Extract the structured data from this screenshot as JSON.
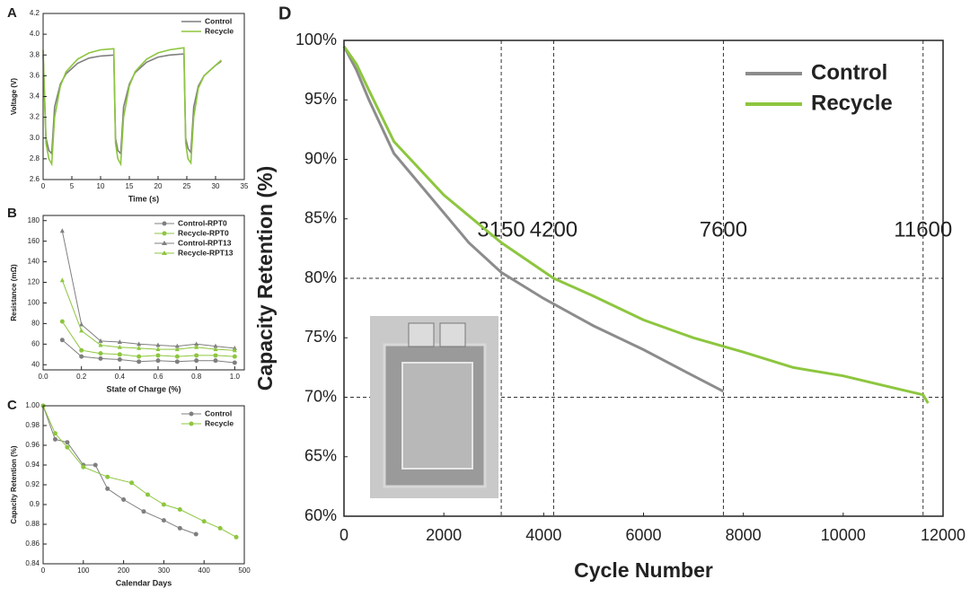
{
  "chart_data": [
    {
      "type": "line",
      "panel": "A",
      "x_label": "Time (s)",
      "y_label": "Voltage (V)",
      "xlim": [
        0,
        35
      ],
      "xticks": [
        0,
        5,
        10,
        15,
        20,
        25,
        30,
        35
      ],
      "ylim": [
        2.6,
        4.2
      ],
      "yticks": [
        2.6,
        2.8,
        {
          "value": 3,
          "label": "3.0"
        },
        3.2,
        3.4,
        3.6,
        3.8,
        {
          "value": 4,
          "label": "4.0"
        },
        4.2
      ],
      "legend": "upper right",
      "series": [
        {
          "name": "Control",
          "color": "#7f7f7f",
          "x": [
            0,
            0.5,
            1,
            1.5,
            2,
            3,
            4,
            6,
            8,
            10,
            12.3,
            12.6,
            13,
            13.5,
            14,
            15,
            16,
            18,
            20,
            22,
            24.5,
            24.8,
            25.2,
            25.7,
            26.2,
            27,
            28,
            30,
            31
          ],
          "values": [
            3.8,
            3.0,
            2.88,
            2.85,
            3.3,
            3.52,
            3.62,
            3.72,
            3.77,
            3.79,
            3.8,
            3.0,
            2.88,
            2.85,
            3.3,
            3.52,
            3.63,
            3.73,
            3.78,
            3.8,
            3.81,
            3.0,
            2.9,
            2.86,
            3.3,
            3.5,
            3.6,
            3.7,
            3.74
          ]
        },
        {
          "name": "Recycle",
          "color": "#8dc63f",
          "x": [
            0,
            0.5,
            1,
            1.5,
            2,
            3,
            4,
            6,
            8,
            10,
            12.3,
            12.6,
            13,
            13.5,
            14,
            15,
            16,
            18,
            20,
            22,
            24.5,
            24.8,
            25.2,
            25.7,
            26.2,
            27,
            28,
            30,
            31
          ],
          "values": [
            3.85,
            2.95,
            2.8,
            2.75,
            3.2,
            3.5,
            3.64,
            3.76,
            3.82,
            3.85,
            3.86,
            2.95,
            2.8,
            2.75,
            3.2,
            3.5,
            3.64,
            3.76,
            3.82,
            3.85,
            3.87,
            2.95,
            2.8,
            2.76,
            3.2,
            3.48,
            3.6,
            3.7,
            3.75
          ]
        }
      ]
    },
    {
      "type": "line",
      "panel": "B",
      "x_label": "State of Charge (%)",
      "y_label": "Resistance (mΩ)",
      "xlim": [
        0,
        1.05
      ],
      "xticks": [
        {
          "value": 0,
          "label": "0.0"
        },
        0.2,
        0.4,
        0.6,
        0.8,
        {
          "value": 1,
          "label": "1.0"
        }
      ],
      "ylim": [
        35,
        185
      ],
      "yticks": [
        40,
        60,
        80,
        100,
        120,
        140,
        160,
        180
      ],
      "legend": "upper right",
      "series": [
        {
          "name": "Control-RPT0",
          "color": "#7f7f7f",
          "marker": "circle",
          "x": [
            0.1,
            0.2,
            0.3,
            0.4,
            0.5,
            0.6,
            0.7,
            0.8,
            0.9,
            1.0
          ],
          "values": [
            64,
            48,
            46,
            45,
            43,
            44,
            43,
            44,
            44,
            42
          ]
        },
        {
          "name": "Recycle-RPT0",
          "color": "#8dc63f",
          "marker": "circle",
          "x": [
            0.1,
            0.2,
            0.3,
            0.4,
            0.5,
            0.6,
            0.7,
            0.8,
            0.9,
            1.0
          ],
          "values": [
            82,
            54,
            51,
            50,
            48,
            49,
            48,
            49,
            49,
            48
          ]
        },
        {
          "name": "Control-RPT13",
          "color": "#7f7f7f",
          "marker": "triangle",
          "x": [
            0.1,
            0.2,
            0.3,
            0.4,
            0.5,
            0.6,
            0.7,
            0.8,
            0.9,
            1.0
          ],
          "values": [
            170,
            79,
            63,
            62,
            60,
            59,
            58,
            60,
            58,
            56
          ]
        },
        {
          "name": "Recycle-RPT13",
          "color": "#8dc63f",
          "marker": "triangle",
          "x": [
            0.1,
            0.2,
            0.3,
            0.4,
            0.5,
            0.6,
            0.7,
            0.8,
            0.9,
            1.0
          ],
          "values": [
            122,
            73,
            59,
            57,
            56,
            55,
            55,
            57,
            55,
            54
          ]
        }
      ]
    },
    {
      "type": "line",
      "panel": "C",
      "x_label": "Calendar Days",
      "y_label": "Capacity Retention (%)",
      "xlim": [
        0,
        500
      ],
      "xticks": [
        0,
        100,
        200,
        300,
        400,
        500
      ],
      "ylim": [
        0.84,
        1.0
      ],
      "yticks": [
        0.84,
        0.86,
        0.88,
        0.9,
        0.92,
        0.94,
        0.96,
        0.98,
        {
          "value": 1,
          "label": "1.00"
        }
      ],
      "legend": "upper right",
      "series": [
        {
          "name": "Control",
          "color": "#7f7f7f",
          "marker": "circle",
          "x": [
            0,
            30,
            60,
            100,
            130,
            160,
            200,
            250,
            300,
            340,
            380
          ],
          "values": [
            1.0,
            0.966,
            0.963,
            0.94,
            0.94,
            0.916,
            0.905,
            0.893,
            0.884,
            0.876,
            0.87
          ]
        },
        {
          "name": "Recycle",
          "color": "#8dc63f",
          "marker": "circle",
          "x": [
            0,
            30,
            60,
            100,
            160,
            220,
            260,
            300,
            340,
            400,
            440,
            480
          ],
          "values": [
            1.0,
            0.972,
            0.958,
            0.938,
            0.928,
            0.922,
            0.91,
            0.9,
            0.895,
            0.883,
            0.876,
            0.867
          ]
        }
      ]
    },
    {
      "type": "line",
      "panel": "D",
      "x_label": "Cycle Number",
      "y_label": "Capacity Retention (%)",
      "xlim": [
        0,
        12000
      ],
      "xticks": [
        0,
        2000,
        4000,
        6000,
        8000,
        10000,
        12000
      ],
      "ylim": [
        60,
        100
      ],
      "yticks": [
        {
          "value": 60,
          "label": "60%"
        },
        {
          "value": 65,
          "label": "65%"
        },
        {
          "value": 70,
          "label": "70%"
        },
        {
          "value": 75,
          "label": "75%"
        },
        {
          "value": 80,
          "label": "80%"
        },
        {
          "value": 85,
          "label": "85%"
        },
        {
          "value": 90,
          "label": "90%"
        },
        {
          "value": 95,
          "label": "95%"
        },
        {
          "value": 100,
          "label": "100%"
        }
      ],
      "vlines": [
        3150,
        4200,
        7600,
        11600
      ],
      "hlines": [
        80,
        70
      ],
      "legend": "upper right",
      "series": [
        {
          "name": "Control",
          "color": "#8c8c8c",
          "x": [
            0,
            250,
            500,
            1000,
            1500,
            2000,
            2500,
            3150,
            4000,
            5000,
            6000,
            7000,
            7600
          ],
          "values": [
            99.5,
            97.5,
            95,
            90.5,
            88,
            85.5,
            83,
            80.5,
            78.3,
            76,
            74,
            71.8,
            70.5
          ]
        },
        {
          "name": "Recycle",
          "color": "#8dc63f",
          "x": [
            0,
            250,
            500,
            1000,
            2000,
            3150,
            4200,
            5000,
            6000,
            7000,
            8000,
            9000,
            10000,
            11000,
            11600,
            11700
          ],
          "values": [
            99.5,
            98,
            95.8,
            91.5,
            87,
            83,
            80,
            78.5,
            76.5,
            75,
            73.8,
            72.5,
            71.8,
            70.8,
            70.2,
            69.5
          ]
        }
      ]
    }
  ]
}
